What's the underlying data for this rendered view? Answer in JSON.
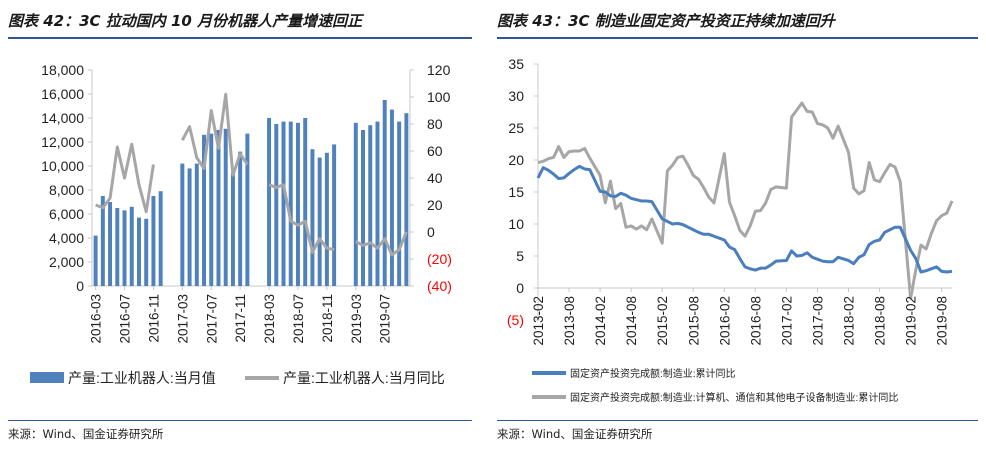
{
  "left": {
    "title": "图表 42：3C 拉动国内 10 月份机器人产量增速回正",
    "source": "来源：Wind、国金证券研究所",
    "chart_data": {
      "type": "bar",
      "secondary_type": "line",
      "categories": [
        "2016-03",
        "2016-04",
        "2016-05",
        "2016-06",
        "2016-07",
        "2016-08",
        "2016-09",
        "2016-10",
        "2016-11",
        "2016-12",
        "2017-01",
        "2017-02",
        "2017-03",
        "2017-04",
        "2017-05",
        "2017-06",
        "2017-07",
        "2017-08",
        "2017-09",
        "2017-10",
        "2017-11",
        "2017-12",
        "2018-01",
        "2018-02",
        "2018-03",
        "2018-04",
        "2018-05",
        "2018-06",
        "2018-07",
        "2018-08",
        "2018-09",
        "2018-10",
        "2018-11",
        "2018-12",
        "2019-01",
        "2019-02",
        "2019-03",
        "2019-04",
        "2019-05",
        "2019-06",
        "2019-07",
        "2019-08",
        "2019-09",
        "2019-10"
      ],
      "x_tick_labels": [
        "2016-03",
        "2016-07",
        "2016-11",
        "2017-03",
        "2017-07",
        "2017-11",
        "2018-03",
        "2018-07",
        "2018-11",
        "2019-03",
        "2019-07"
      ],
      "series": [
        {
          "name": "产量:工业机器人:当月值",
          "axis": "left",
          "type": "bar",
          "color": "#4f81bd",
          "values": [
            4200,
            7500,
            7000,
            6500,
            6300,
            6600,
            5700,
            5600,
            7500,
            7900,
            null,
            null,
            10200,
            9800,
            10200,
            12600,
            12700,
            13000,
            13100,
            9400,
            11200,
            12700,
            null,
            null,
            14000,
            13500,
            13700,
            13700,
            13600,
            14000,
            11400,
            10700,
            11100,
            11800,
            null,
            null,
            13600,
            13000,
            13400,
            13700,
            15500,
            14700,
            13700,
            14400
          ]
        },
        {
          "name": "产量:工业机器人:当月同比",
          "axis": "right",
          "type": "line",
          "color": "#a6a6a6",
          "values": [
            20,
            18,
            25,
            63,
            40,
            65,
            35,
            15,
            50,
            null,
            null,
            null,
            68,
            78,
            55,
            47,
            90,
            62,
            102,
            42,
            58,
            50,
            null,
            null,
            35,
            33,
            35,
            8,
            5,
            8,
            -15,
            -5,
            -12,
            -13,
            null,
            null,
            -7,
            -10,
            -8,
            -12,
            -5,
            -17,
            -13,
            0
          ]
        }
      ],
      "y_left": {
        "min": 0,
        "max": 18000,
        "ticks": [
          "0",
          "2,000",
          "4,000",
          "6,000",
          "8,000",
          "10,000",
          "12,000",
          "14,000",
          "16,000",
          "18,000"
        ]
      },
      "y_right": {
        "min": -40,
        "max": 120,
        "ticks": [
          "(40)",
          "(20)",
          "0",
          "20",
          "40",
          "60",
          "80",
          "100",
          "120"
        ],
        "negative_color": "#ff0000"
      },
      "legend_position": "bottom",
      "colors": {
        "bar": "#4f81bd",
        "line": "#a6a6a6"
      }
    }
  },
  "right": {
    "title": "图表 43：3C 制造业固定资产投资正持续加速回升",
    "source": "来源：Wind、国金证券研究所",
    "chart_data": {
      "type": "line",
      "x_tick_labels": [
        "2013-02",
        "2013-08",
        "2014-02",
        "2014-08",
        "2015-02",
        "2015-08",
        "2016-02",
        "2016-08",
        "2017-02",
        "2017-08",
        "2018-02",
        "2018-08",
        "2019-02",
        "2019-08"
      ],
      "x_range": [
        "2013-02",
        "2019-10"
      ],
      "series": [
        {
          "name": "固定资产投资完成额:制造业:累计同比",
          "color": "#4a7ebf",
          "points": [
            [
              "2013-02",
              17.2
            ],
            [
              "2013-03",
              18.8
            ],
            [
              "2013-04",
              18.4
            ],
            [
              "2013-05",
              17.8
            ],
            [
              "2013-06",
              17.1
            ],
            [
              "2013-07",
              17.2
            ],
            [
              "2013-08",
              17.9
            ],
            [
              "2013-09",
              18.5
            ],
            [
              "2013-10",
              19.0
            ],
            [
              "2013-11",
              18.6
            ],
            [
              "2013-12",
              18.5
            ],
            [
              "2014-02",
              15.1
            ],
            [
              "2014-03",
              15.0
            ],
            [
              "2014-04",
              14.4
            ],
            [
              "2014-05",
              14.3
            ],
            [
              "2014-06",
              14.8
            ],
            [
              "2014-07",
              14.5
            ],
            [
              "2014-08",
              14.0
            ],
            [
              "2014-09",
              13.8
            ],
            [
              "2014-10",
              13.6
            ],
            [
              "2014-11",
              13.6
            ],
            [
              "2014-12",
              13.5
            ],
            [
              "2015-02",
              10.8
            ],
            [
              "2015-03",
              10.4
            ],
            [
              "2015-04",
              10.0
            ],
            [
              "2015-05",
              10.1
            ],
            [
              "2015-06",
              9.9
            ],
            [
              "2015-07",
              9.5
            ],
            [
              "2015-08",
              9.1
            ],
            [
              "2015-09",
              8.7
            ],
            [
              "2015-10",
              8.4
            ],
            [
              "2015-11",
              8.4
            ],
            [
              "2015-12",
              8.1
            ],
            [
              "2016-02",
              7.5
            ],
            [
              "2016-03",
              6.4
            ],
            [
              "2016-04",
              6.0
            ],
            [
              "2016-05",
              4.6
            ],
            [
              "2016-06",
              3.3
            ],
            [
              "2016-07",
              3.0
            ],
            [
              "2016-08",
              2.8
            ],
            [
              "2016-09",
              3.1
            ],
            [
              "2016-10",
              3.1
            ],
            [
              "2016-11",
              3.6
            ],
            [
              "2016-12",
              4.2
            ],
            [
              "2017-02",
              4.3
            ],
            [
              "2017-03",
              5.8
            ],
            [
              "2017-04",
              5.0
            ],
            [
              "2017-05",
              5.1
            ],
            [
              "2017-06",
              5.5
            ],
            [
              "2017-07",
              4.8
            ],
            [
              "2017-08",
              4.5
            ],
            [
              "2017-09",
              4.2
            ],
            [
              "2017-10",
              4.1
            ],
            [
              "2017-11",
              4.1
            ],
            [
              "2017-12",
              4.8
            ],
            [
              "2018-02",
              4.3
            ],
            [
              "2018-03",
              3.8
            ],
            [
              "2018-04",
              4.8
            ],
            [
              "2018-05",
              5.2
            ],
            [
              "2018-06",
              6.8
            ],
            [
              "2018-07",
              7.3
            ],
            [
              "2018-08",
              7.5
            ],
            [
              "2018-09",
              8.7
            ],
            [
              "2018-10",
              9.1
            ],
            [
              "2018-11",
              9.5
            ],
            [
              "2018-12",
              9.5
            ],
            [
              "2019-02",
              5.9
            ],
            [
              "2019-03",
              4.6
            ],
            [
              "2019-04",
              2.5
            ],
            [
              "2019-05",
              2.7
            ],
            [
              "2019-06",
              3.0
            ],
            [
              "2019-07",
              3.3
            ],
            [
              "2019-08",
              2.6
            ],
            [
              "2019-09",
              2.5
            ],
            [
              "2019-10",
              2.6
            ]
          ]
        },
        {
          "name": "固定资产投资完成额:制造业:计算机、通信和其他电子设备制造业:累计同比",
          "color": "#a6a6a6",
          "points": [
            [
              "2013-02",
              19.6
            ],
            [
              "2013-03",
              19.8
            ],
            [
              "2013-04",
              20.2
            ],
            [
              "2013-05",
              20.4
            ],
            [
              "2013-06",
              22.1
            ],
            [
              "2013-07",
              20.4
            ],
            [
              "2013-08",
              21.3
            ],
            [
              "2013-09",
              21.4
            ],
            [
              "2013-10",
              21.4
            ],
            [
              "2013-11",
              21.8
            ],
            [
              "2013-12",
              20.3
            ],
            [
              "2014-02",
              17.6
            ],
            [
              "2014-03",
              13.3
            ],
            [
              "2014-04",
              16.7
            ],
            [
              "2014-05",
              12.4
            ],
            [
              "2014-06",
              13.2
            ],
            [
              "2014-07",
              9.5
            ],
            [
              "2014-08",
              9.7
            ],
            [
              "2014-09",
              9.2
            ],
            [
              "2014-10",
              9.7
            ],
            [
              "2014-11",
              9.1
            ],
            [
              "2014-12",
              10.8
            ],
            [
              "2015-02",
              7.0
            ],
            [
              "2015-03",
              18.3
            ],
            [
              "2015-04",
              19.2
            ],
            [
              "2015-05",
              20.4
            ],
            [
              "2015-06",
              20.6
            ],
            [
              "2015-07",
              19.2
            ],
            [
              "2015-08",
              17.6
            ],
            [
              "2015-09",
              17.0
            ],
            [
              "2015-10",
              15.7
            ],
            [
              "2015-11",
              14.2
            ],
            [
              "2015-12",
              13.3
            ],
            [
              "2016-02",
              21.0
            ],
            [
              "2016-03",
              13.4
            ],
            [
              "2016-04",
              11.3
            ],
            [
              "2016-05",
              9.0
            ],
            [
              "2016-06",
              8.1
            ],
            [
              "2016-07",
              9.7
            ],
            [
              "2016-08",
              12.0
            ],
            [
              "2016-09",
              12.1
            ],
            [
              "2016-10",
              13.3
            ],
            [
              "2016-11",
              15.4
            ],
            [
              "2016-12",
              15.8
            ],
            [
              "2017-02",
              15.6
            ],
            [
              "2017-03",
              26.7
            ],
            [
              "2017-04",
              27.8
            ],
            [
              "2017-05",
              28.9
            ],
            [
              "2017-06",
              27.6
            ],
            [
              "2017-07",
              27.5
            ],
            [
              "2017-08",
              25.7
            ],
            [
              "2017-09",
              25.5
            ],
            [
              "2017-10",
              25.0
            ],
            [
              "2017-11",
              23.4
            ],
            [
              "2017-12",
              25.3
            ],
            [
              "2018-02",
              21.2
            ],
            [
              "2018-03",
              15.6
            ],
            [
              "2018-04",
              14.7
            ],
            [
              "2018-05",
              15.2
            ],
            [
              "2018-06",
              19.6
            ],
            [
              "2018-07",
              16.9
            ],
            [
              "2018-08",
              16.6
            ],
            [
              "2018-09",
              18.0
            ],
            [
              "2018-10",
              19.3
            ],
            [
              "2018-11",
              18.9
            ],
            [
              "2018-12",
              16.6
            ],
            [
              "2019-02",
              -1.6
            ],
            [
              "2019-03",
              2.8
            ],
            [
              "2019-04",
              6.7
            ],
            [
              "2019-05",
              6.1
            ],
            [
              "2019-06",
              8.5
            ],
            [
              "2019-07",
              10.5
            ],
            [
              "2019-08",
              11.3
            ],
            [
              "2019-09",
              11.7
            ],
            [
              "2019-10",
              13.6
            ]
          ]
        }
      ],
      "y": {
        "min": -5,
        "max": 35,
        "ticks": [
          "(5)",
          "0",
          "5",
          "10",
          "15",
          "20",
          "25",
          "30",
          "35"
        ],
        "negative_color": "#ff0000"
      },
      "legend_position": "bottom",
      "colors": {
        "blue": "#4a7ebf",
        "gray": "#a6a6a6"
      }
    }
  }
}
